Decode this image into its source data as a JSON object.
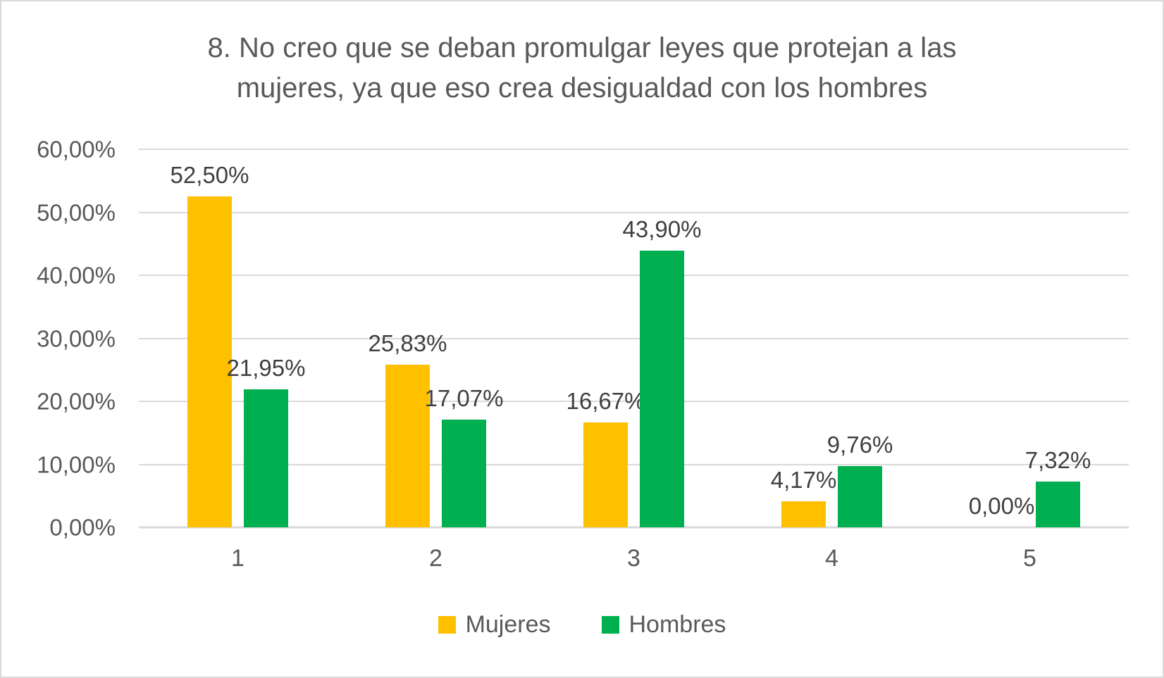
{
  "title": "8. No creo que se deban promulgar leyes que protejan a las mujeres, ya que eso crea desigualdad con los hombres",
  "title_lines": [
    "8. No creo que se deban promulgar leyes que protejan a las",
    "mujeres, ya que eso crea desigualdad con los hombres"
  ],
  "chart_data": {
    "type": "bar",
    "categories": [
      "1",
      "2",
      "3",
      "4",
      "5"
    ],
    "series": [
      {
        "name": "Mujeres",
        "color": "#FFC000",
        "values": [
          52.5,
          25.83,
          16.67,
          4.17,
          0.0
        ],
        "labels": [
          "52,50%",
          "25,83%",
          "16,67%",
          "4,17%",
          "0,00%"
        ]
      },
      {
        "name": "Hombres",
        "color": "#00B050",
        "values": [
          21.95,
          17.07,
          43.9,
          9.76,
          7.32
        ],
        "labels": [
          "21,95%",
          "17,07%",
          "43,90%",
          "9,76%",
          "7,32%"
        ]
      }
    ],
    "xlabel": "",
    "ylabel": "",
    "ylim": [
      0,
      60
    ],
    "ytick_step": 10,
    "ytick_labels": [
      "0,00%",
      "10,00%",
      "20,00%",
      "30,00%",
      "40,00%",
      "50,00%",
      "60,00%"
    ],
    "grid": true,
    "gridline_color": "#d9d9d9",
    "label_color": "#404040",
    "axis_text_color": "#595959",
    "legend_position": "bottom"
  }
}
